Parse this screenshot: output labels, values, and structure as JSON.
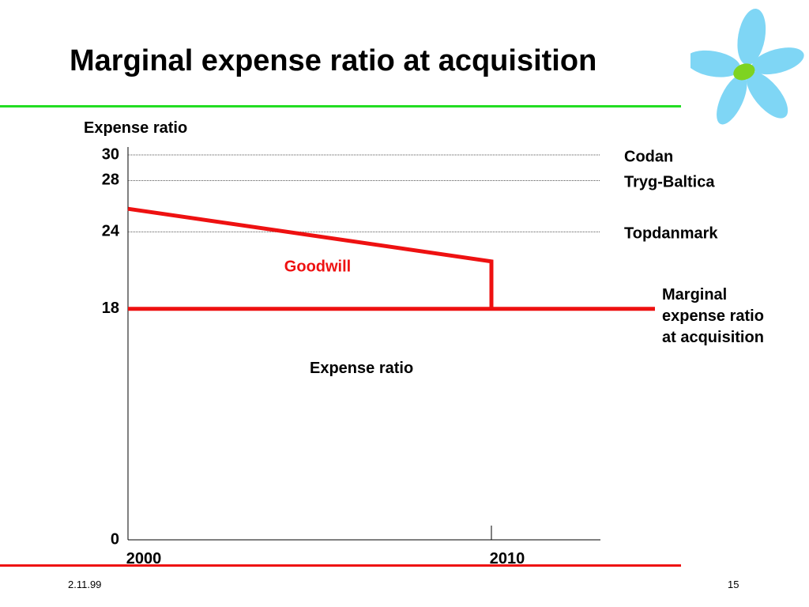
{
  "slide": {
    "title": "Marginal expense ratio at acquisition",
    "footer_date": "2.11.99",
    "page_number": "15",
    "top_rule_color": "#22dd22",
    "bottom_rule_color": "#ee1111",
    "logo_icon": "flower-logo-icon"
  },
  "chart_data": {
    "type": "line",
    "ylabel": "Expense ratio",
    "ylim": [
      0,
      30
    ],
    "xlim": [
      2000,
      2013
    ],
    "y_ticks": [
      "0",
      "18",
      "24",
      "28",
      "30"
    ],
    "x_ticks": [
      "2000",
      "2010"
    ],
    "reference_lines": [
      {
        "label": "Codan",
        "y": 30
      },
      {
        "label": "Tryg-Baltica",
        "y": 28
      },
      {
        "label": "Topdanmark",
        "y": 24
      }
    ],
    "series": [
      {
        "label": "Marginal expense ratio at acquisition",
        "color": "#ee1111",
        "points": [
          [
            2000,
            18
          ],
          [
            2014.5,
            18
          ]
        ]
      },
      {
        "label": "",
        "color": "#ee1111",
        "points": [
          [
            2000,
            25.8
          ],
          [
            2010,
            21.7
          ],
          [
            2010,
            18
          ]
        ]
      }
    ],
    "annotations": [
      {
        "text": "Goodwill",
        "x": 2004.3,
        "y": 20.9,
        "color": "#ee1111"
      },
      {
        "text": "Expense ratio",
        "x": 2005.0,
        "y": 13.0,
        "color": "#000000"
      }
    ]
  }
}
